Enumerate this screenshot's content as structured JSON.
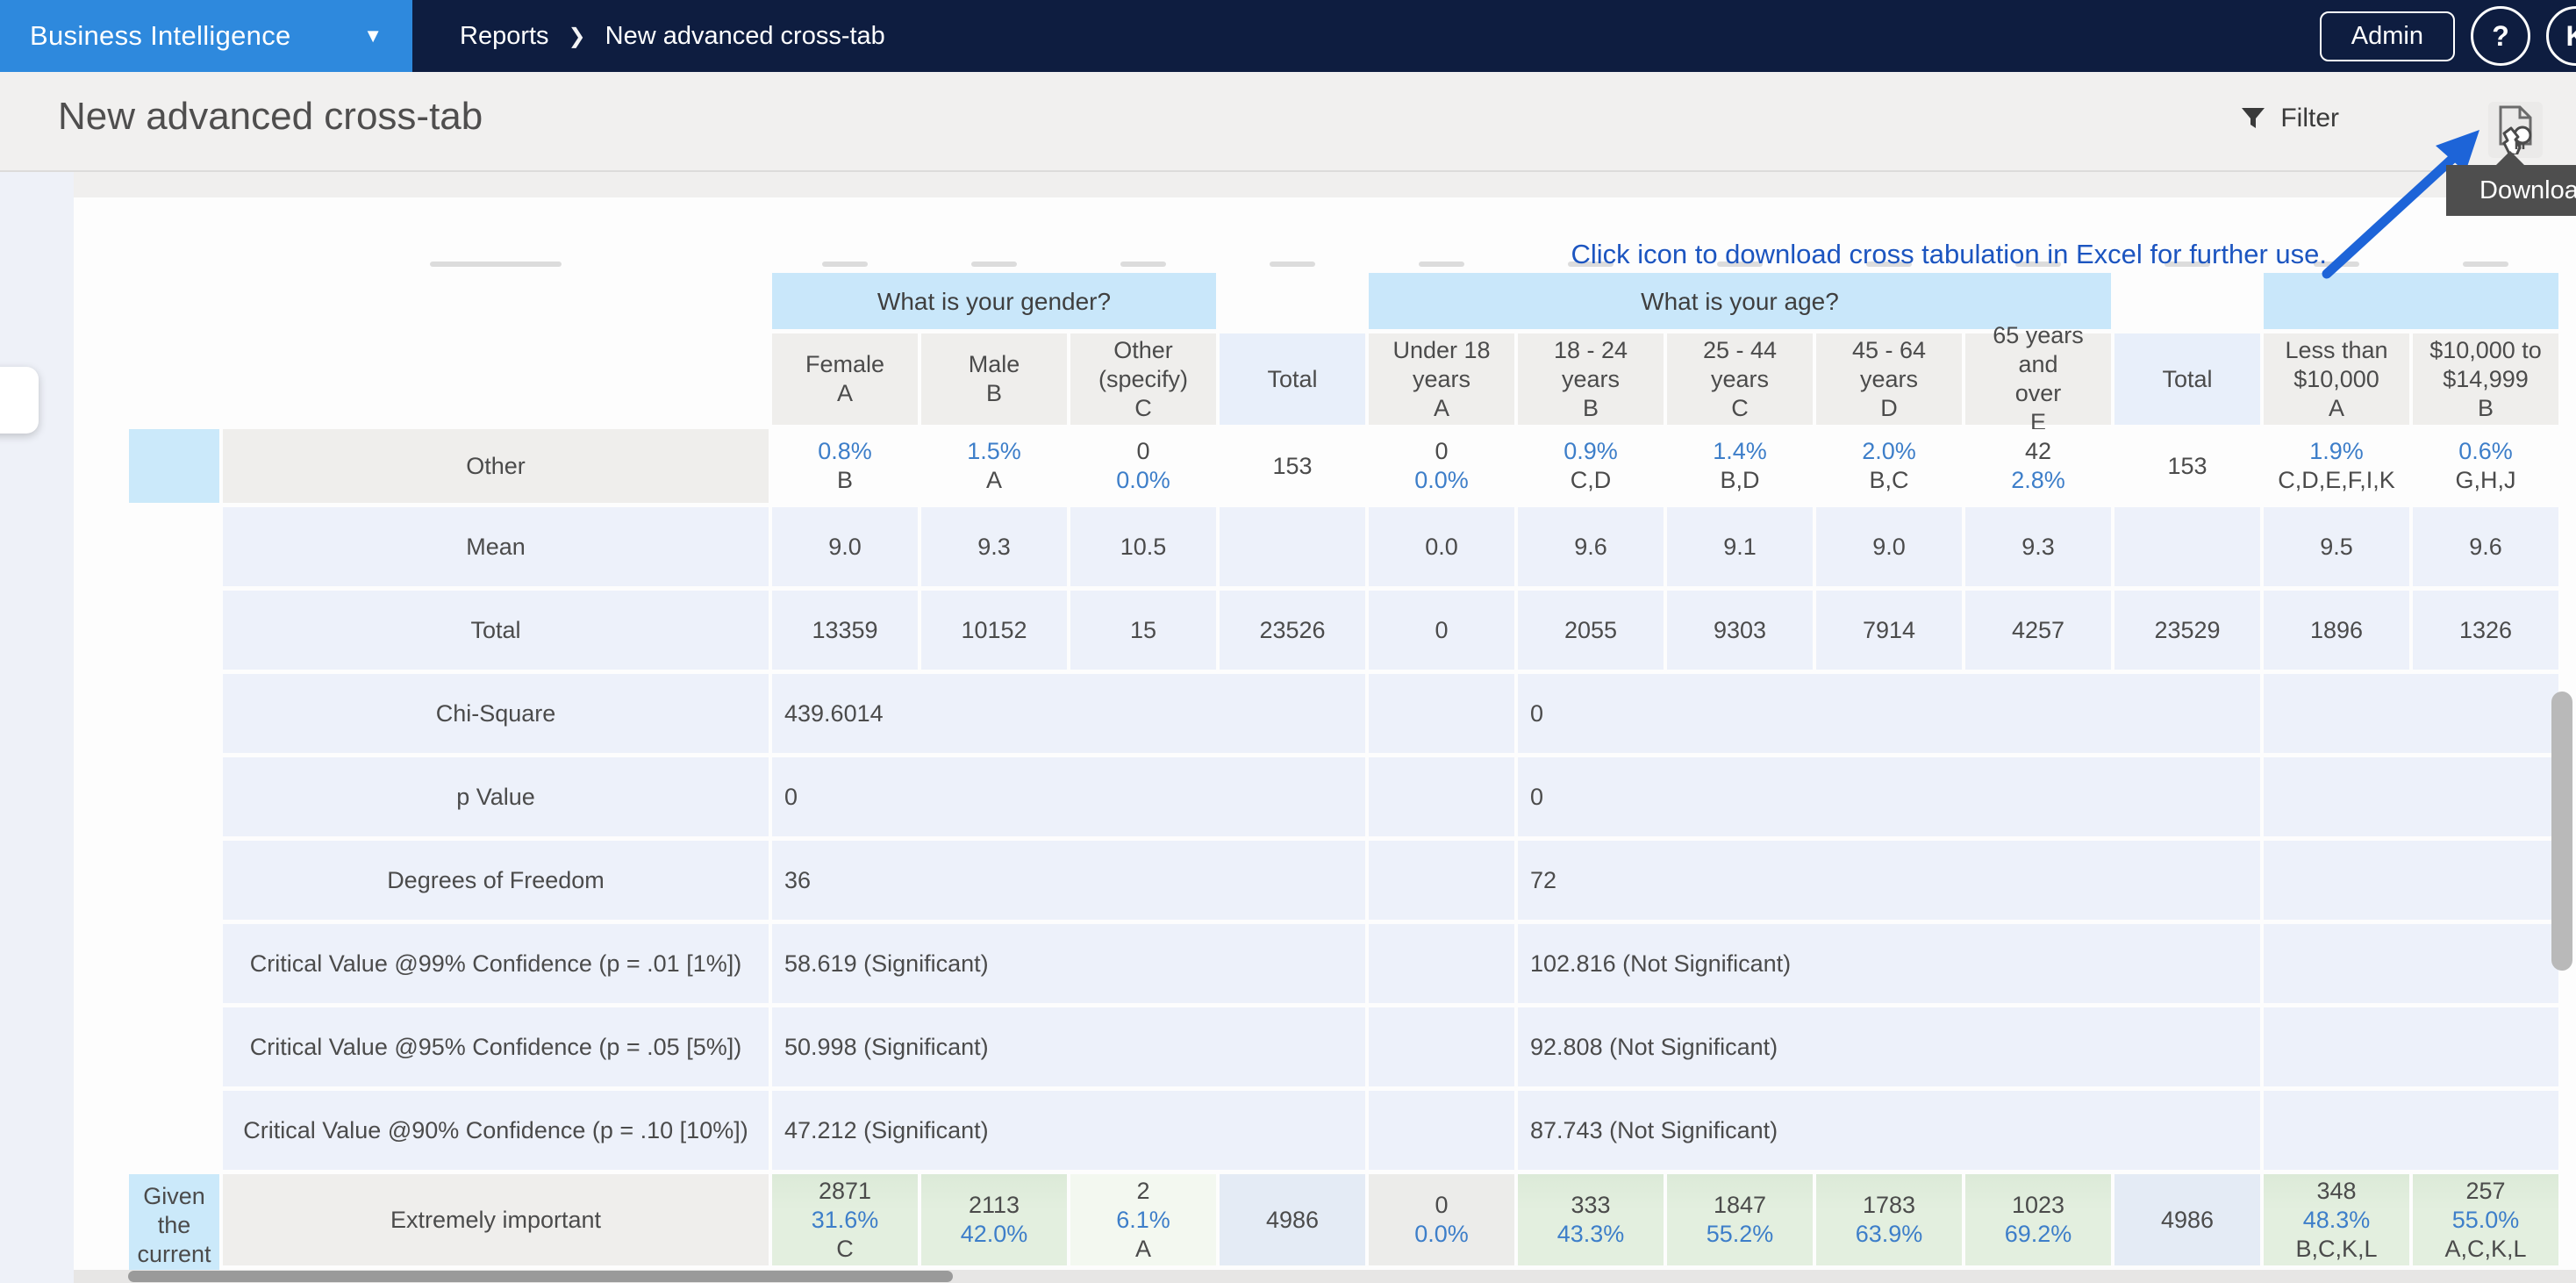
{
  "nav": {
    "app_title": "Business Intelligence",
    "breadcrumb": {
      "parent": "Reports",
      "separator": "❯",
      "current": "New advanced cross-tab"
    },
    "admin_label": "Admin",
    "help_label": "?",
    "avatar_label": "K"
  },
  "header": {
    "page_title": "New advanced cross-tab",
    "filter_label": "Filter",
    "download_tooltip": "Download"
  },
  "annotation": "Click icon to download cross tabulation in Excel for further use.",
  "colors": {
    "navbar": "#0e1d40",
    "brand": "#2e89dd",
    "page_bg": "#f0efee",
    "card": "#fdfdfd",
    "group_header": "#c9e7fa",
    "col_header": "#efeeec",
    "row_lightblue": "#edf1fa",
    "label_gray": "#efeeec",
    "sticky_blue": "#cbe9fa",
    "total_header": "#e8effa",
    "green": "#e3efdf",
    "green_light": "#f3f8f0",
    "total_cell": "#e4ebf5",
    "blue_text": "#3d7ec9",
    "dark_text": "#4b4b4b",
    "annotation_blue": "#1c55c0",
    "arrow_blue": "#1d64d8",
    "tooltip_bg": "#4e4e4e",
    "scrollbar": "#9a9a9a"
  },
  "crosstab": {
    "question_groups": [
      {
        "label": "What is your gender?",
        "start": 0,
        "span": 3
      },
      {
        "label": "What is your age?",
        "start": 4,
        "span": 5
      },
      {
        "label": "",
        "start": 10,
        "span": 2
      }
    ],
    "columns": [
      {
        "lines": [
          "Female",
          "A"
        ],
        "type": "answer"
      },
      {
        "lines": [
          "Male",
          "B"
        ],
        "type": "answer"
      },
      {
        "lines": [
          "Other",
          "(specify)",
          "C"
        ],
        "type": "answer"
      },
      {
        "lines": [
          "Total"
        ],
        "type": "total"
      },
      {
        "lines": [
          "Under 18",
          "years",
          "A"
        ],
        "type": "answer"
      },
      {
        "lines": [
          "18 - 24 years",
          "B"
        ],
        "type": "answer"
      },
      {
        "lines": [
          "25 - 44 years",
          "C"
        ],
        "type": "answer"
      },
      {
        "lines": [
          "45 - 64 years",
          "D"
        ],
        "type": "answer"
      },
      {
        "lines": [
          "65 years and",
          "over",
          "E"
        ],
        "type": "answer"
      },
      {
        "lines": [
          "Total"
        ],
        "type": "total"
      },
      {
        "lines": [
          "Less than",
          "$10,000",
          "A"
        ],
        "type": "answer"
      },
      {
        "lines": [
          "$10,000 to",
          "$14,999",
          "B"
        ],
        "type": "answer"
      }
    ],
    "rows": [
      {
        "kind": "remnant"
      },
      {
        "kind": "groups"
      },
      {
        "kind": "colheads"
      },
      {
        "kind": "answer",
        "label": "Other",
        "label_bg": "gray",
        "sticky_bg": "sticky",
        "cell_bg": "white",
        "height": 84,
        "cells": [
          [
            "0.8%",
            "B"
          ],
          [
            "1.5%",
            "A"
          ],
          [
            "0",
            "0.0%"
          ],
          [
            "153"
          ],
          [
            "0",
            "0.0%"
          ],
          [
            "0.9%",
            "C,D"
          ],
          [
            "1.4%",
            "B,D"
          ],
          [
            "2.0%",
            "B,C"
          ],
          [
            "42",
            "2.8%"
          ],
          [
            "153"
          ],
          [
            "1.9%",
            "C,D,E,F,I,K"
          ],
          [
            "0.6%",
            "G,H,J"
          ]
        ]
      },
      {
        "kind": "answer",
        "label": "Mean",
        "label_bg": "lightblue",
        "sticky_bg": "white",
        "cell_bg": "lightblue",
        "height": 90,
        "cells": [
          [
            "9.0"
          ],
          [
            "9.3"
          ],
          [
            "10.5"
          ],
          [],
          [
            "0.0"
          ],
          [
            "9.6"
          ],
          [
            "9.1"
          ],
          [
            "9.0"
          ],
          [
            "9.3"
          ],
          [],
          [
            "9.5"
          ],
          [
            "9.6"
          ]
        ]
      },
      {
        "kind": "answer",
        "label": "Total",
        "label_bg": "lightblue",
        "sticky_bg": "white",
        "cell_bg": "lightblue",
        "height": 90,
        "cells": [
          [
            "13359"
          ],
          [
            "10152"
          ],
          [
            "15"
          ],
          [
            "23526"
          ],
          [
            "0"
          ],
          [
            "2055"
          ],
          [
            "9303"
          ],
          [
            "7914"
          ],
          [
            "4257"
          ],
          [
            "23529"
          ],
          [
            "1896"
          ],
          [
            "1326"
          ]
        ]
      },
      {
        "kind": "stat",
        "label": "Chi-Square",
        "gender": "439.6014",
        "under18": "",
        "age": "0",
        "income": ""
      },
      {
        "kind": "stat",
        "label": "p Value",
        "gender": "0",
        "under18": "",
        "age": "0",
        "income": ""
      },
      {
        "kind": "stat",
        "label": "Degrees of Freedom",
        "gender": "36",
        "under18": "",
        "age": "72",
        "income": ""
      },
      {
        "kind": "stat",
        "label": "Critical Value @99% Confidence (p = .01 [1%])",
        "gender": "58.619 (Significant)",
        "under18": "",
        "age": "102.816 (Not Significant)",
        "income": ""
      },
      {
        "kind": "stat",
        "label": "Critical Value @95% Confidence (p = .05 [5%])",
        "gender": "50.998 (Significant)",
        "under18": "",
        "age": "92.808 (Not Significant)",
        "income": ""
      },
      {
        "kind": "stat",
        "label": "Critical Value @90% Confidence (p = .10 [10%])",
        "gender": "47.212 (Significant)",
        "under18": "",
        "age": "87.743 (Not Significant)",
        "income": ""
      },
      {
        "kind": "likert",
        "group": "Given the current scenario",
        "label": "Extremely important",
        "cells": [
          [
            "2871",
            "31.6%",
            "C"
          ],
          [
            "2113",
            "42.0%"
          ],
          [
            "2",
            "6.1%",
            "A"
          ],
          [
            "4986"
          ],
          [
            "0",
            "0.0%"
          ],
          [
            "333",
            "43.3%"
          ],
          [
            "1847",
            "55.2%"
          ],
          [
            "1783",
            "63.9%"
          ],
          [
            "1023",
            "69.2%"
          ],
          [
            "4986"
          ],
          [
            "348",
            "48.3%",
            "B,C,K,L"
          ],
          [
            "257",
            "55.0%",
            "A,C,K,L"
          ]
        ],
        "cell_bgs": [
          "green",
          "green",
          "greenlight",
          "totalcell",
          "cellgray",
          "green",
          "green",
          "green",
          "green",
          "totalcell",
          "green",
          "green"
        ]
      }
    ]
  }
}
